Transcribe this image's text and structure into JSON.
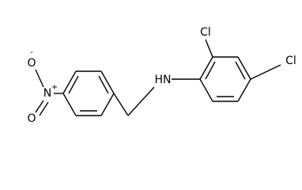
{
  "atoms": {
    "cl_top": "Cl",
    "cl_right": "Cl",
    "amine": "HN",
    "nitro_n": "N",
    "nitro_n_charge": "+",
    "nitro_o_top": "O",
    "nitro_o_top_charge": "-",
    "nitro_o_bottom": "O"
  }
}
